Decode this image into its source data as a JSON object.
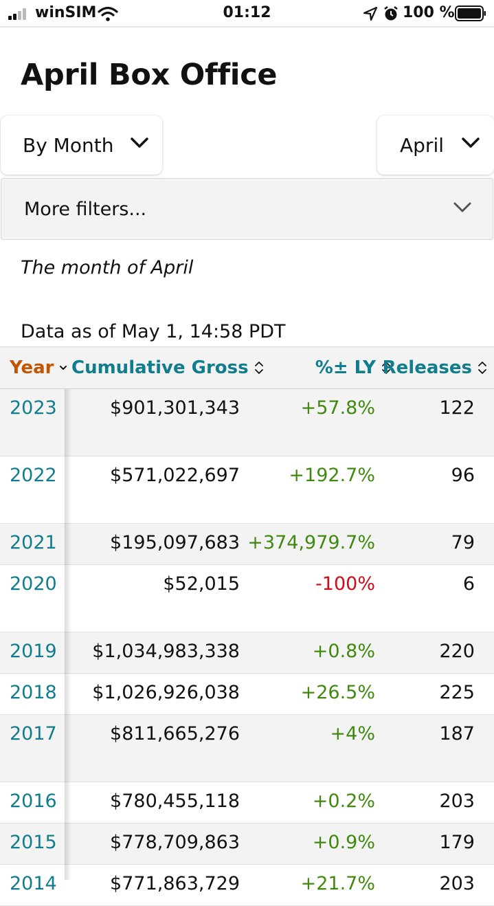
{
  "status_bar": {
    "carrier": "winSIM",
    "time": "01:12",
    "battery_pct": "100 %",
    "icons": [
      "signal-icon",
      "wifi-icon",
      "location-icon",
      "alarm-icon",
      "battery-icon"
    ]
  },
  "page": {
    "title": "April Box Office",
    "period_select": "By Month",
    "month_select": "April",
    "more_filters": "More filters...",
    "subtitle": "The month of April",
    "data_as_of": "Data as of May 1, 14:58 PDT"
  },
  "table": {
    "headers": {
      "year": "Year",
      "gross": "Cumulative Gross",
      "change": "%± LY",
      "releases": "Releases"
    },
    "rows": [
      {
        "year": "2023",
        "gross": "$901,301,343",
        "change": "+57.8%",
        "releases": "122"
      },
      {
        "year": "2022",
        "gross": "$571,022,697",
        "change": "+192.7%",
        "releases": "96"
      },
      {
        "year": "2021",
        "gross": "$195,097,683",
        "change": "+374,979.7%",
        "releases": "79"
      },
      {
        "year": "2020",
        "gross": "$52,015",
        "change": "-100%",
        "releases": "6"
      },
      {
        "year": "2019",
        "gross": "$1,034,983,338",
        "change": "+0.8%",
        "releases": "220"
      },
      {
        "year": "2018",
        "gross": "$1,026,926,038",
        "change": "+26.5%",
        "releases": "225"
      },
      {
        "year": "2017",
        "gross": "$811,665,276",
        "change": "+4%",
        "releases": "187"
      },
      {
        "year": "2016",
        "gross": "$780,455,118",
        "change": "+0.2%",
        "releases": "203"
      },
      {
        "year": "2015",
        "gross": "$778,709,863",
        "change": "+0.9%",
        "releases": "179"
      },
      {
        "year": "2014",
        "gross": "$771,863,729",
        "change": "+21.7%",
        "releases": "203"
      }
    ]
  },
  "colors": {
    "link": "#0f7d8e",
    "sort_active": "#c45500",
    "positive": "#3f8a0e",
    "negative": "#cc0c1a"
  }
}
